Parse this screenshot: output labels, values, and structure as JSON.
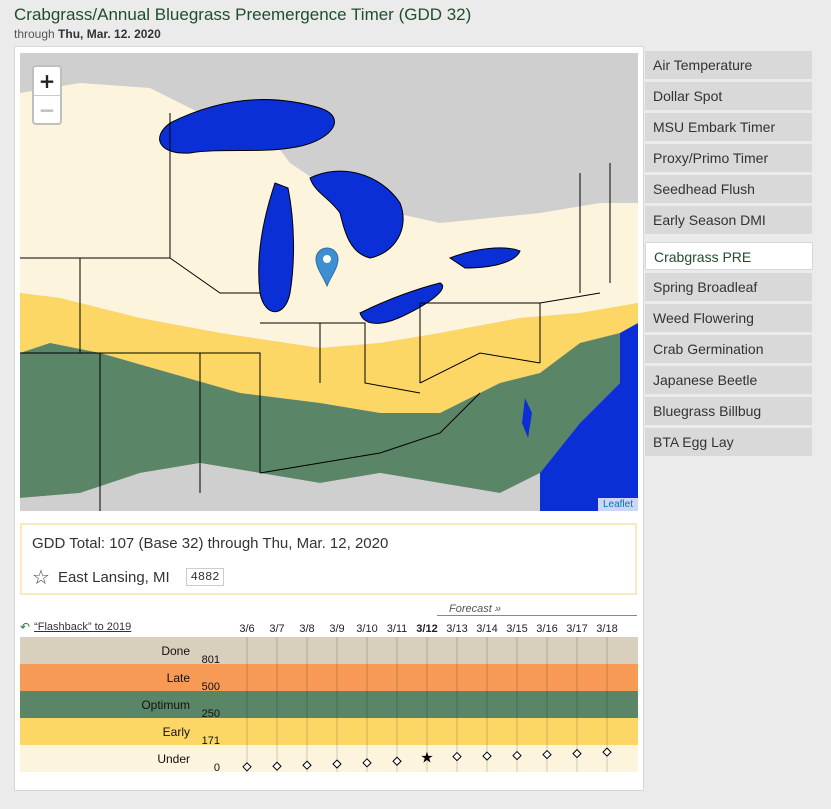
{
  "header": {
    "title": "Crabgrass/Annual Bluegrass Preemergence Timer (GDD 32)",
    "through_label": "through",
    "through_date": "Thu, Mar. 12. 2020"
  },
  "map": {
    "zoom_in": "+",
    "zoom_out": "−",
    "attribution": "Leaflet"
  },
  "info": {
    "total_text": "GDD Total: 107 (Base 32) through Thu, Mar. 12, 2020",
    "location": "East Lansing, MI",
    "zip": "4882"
  },
  "flashback": {
    "label": "“Flashback” to 2019"
  },
  "forecast": {
    "label": "Forecast »"
  },
  "sidebar": {
    "items": [
      {
        "label": "Air Temperature",
        "active": false
      },
      {
        "label": "Dollar Spot",
        "active": false
      },
      {
        "label": "MSU Embark Timer",
        "active": false
      },
      {
        "label": "Proxy/Primo Timer",
        "active": false
      },
      {
        "label": "Seedhead Flush",
        "active": false
      },
      {
        "label": "Early Season DMI",
        "active": false
      },
      {
        "label": "Crabgrass PRE",
        "active": true
      },
      {
        "label": "Spring Broadleaf",
        "active": false
      },
      {
        "label": "Weed Flowering",
        "active": false
      },
      {
        "label": "Crab Germination",
        "active": false
      },
      {
        "label": "Japanese Beetle",
        "active": false
      },
      {
        "label": "Bluegrass Billbug",
        "active": false
      },
      {
        "label": "BTA Egg Lay",
        "active": false
      }
    ]
  },
  "chart_data": {
    "type": "scatter",
    "categories": [
      "3/6",
      "3/7",
      "3/8",
      "3/9",
      "3/10",
      "3/11",
      "3/12",
      "3/13",
      "3/14",
      "3/15",
      "3/16",
      "3/17",
      "3/18"
    ],
    "current_index": 6,
    "values": [
      12,
      18,
      28,
      40,
      52,
      68,
      107,
      115,
      120,
      125,
      135,
      145,
      160
    ],
    "bands": [
      {
        "name": "Done",
        "from": 801,
        "to": 1100,
        "color": "#d9cfbd"
      },
      {
        "name": "Late",
        "from": 500,
        "to": 801,
        "color": "#f79a55"
      },
      {
        "name": "Optimum",
        "from": 250,
        "to": 500,
        "color": "#5a8567"
      },
      {
        "name": "Early",
        "from": 171,
        "to": 250,
        "color": "#fdd766"
      },
      {
        "name": "Under",
        "from": 0,
        "to": 171,
        "color": "#fdf4dd"
      }
    ],
    "threshold_labels": [
      "801",
      "500",
      "250",
      "171",
      "0"
    ]
  },
  "colors": {
    "water": "#0b2fd6",
    "land_gray": "#cfcfcf",
    "under": "#fdf4dd",
    "early": "#fdd766",
    "optimum": "#5a8567",
    "marker": "#3d8fd1"
  }
}
